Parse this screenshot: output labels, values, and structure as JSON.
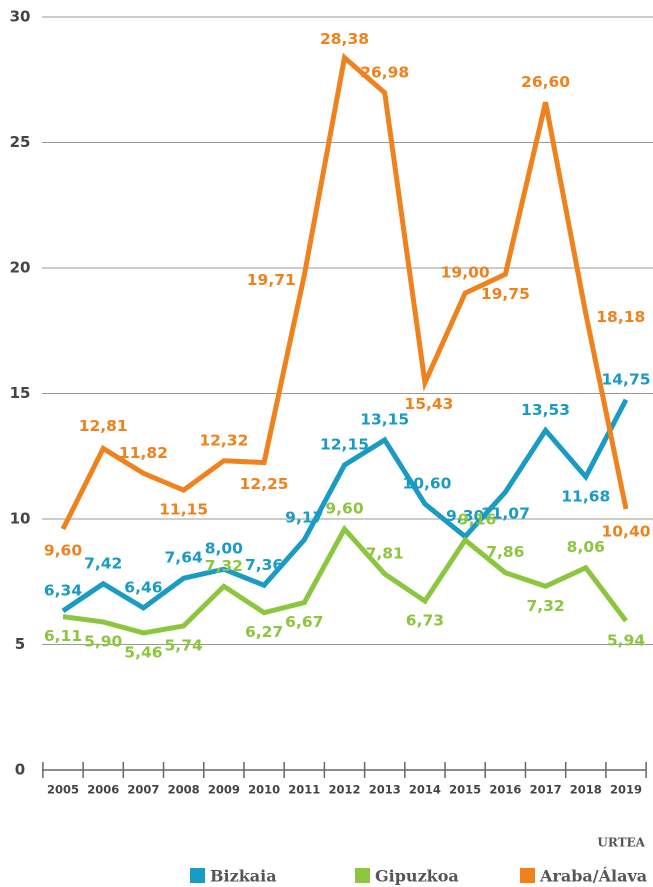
{
  "chart_data": {
    "type": "line",
    "x": [
      "2005",
      "2006",
      "2007",
      "2008",
      "2009",
      "2010",
      "2011",
      "2012",
      "2013",
      "2014",
      "2015",
      "2016",
      "2017",
      "2018",
      "2019"
    ],
    "x_label": "URTEA",
    "ylim": [
      0,
      30
    ],
    "yticks": [
      0,
      5,
      10,
      15,
      20,
      25,
      30
    ],
    "grid": true,
    "legend": "bottom",
    "series": [
      {
        "name": "Bizkaia",
        "color": "#1a9bc4",
        "values": [
          6.34,
          7.42,
          6.46,
          7.64,
          8.0,
          7.36,
          9.17,
          12.15,
          13.15,
          10.6,
          9.3,
          11.07,
          13.53,
          11.68,
          14.75
        ],
        "value_labels": [
          "6,34",
          "7,42",
          "6,46",
          "7,64",
          "8,00",
          "7,36",
          "9,17",
          "12,15",
          "13,15",
          "10,60",
          "9,30",
          "11,07",
          "13,53",
          "11,68",
          "14,75"
        ]
      },
      {
        "name": "Gipuzkoa",
        "color": "#8cc63f",
        "values": [
          6.11,
          5.9,
          5.46,
          5.74,
          7.32,
          6.27,
          6.67,
          9.6,
          7.81,
          6.73,
          9.16,
          7.86,
          7.32,
          8.06,
          5.94
        ],
        "value_labels": [
          "6,11",
          "5,90",
          "5,46",
          "5,74",
          "7,32",
          "6,27",
          "6,67",
          "9,60",
          "7,81",
          "6,73",
          "9,16",
          "7,86",
          "7,32",
          "8,06",
          "5,94"
        ]
      },
      {
        "name": "Araba/Álava",
        "color": "#f0821e",
        "values": [
          9.6,
          12.81,
          11.82,
          11.15,
          12.32,
          12.25,
          19.71,
          28.38,
          26.98,
          15.43,
          19.0,
          19.75,
          26.6,
          18.18,
          10.4
        ],
        "value_labels": [
          "9,60",
          "12,81",
          "11,82",
          "11,15",
          "12,32",
          "12,25",
          "19,71",
          "28,38",
          "26,98",
          "15,43",
          "19,00",
          "19,75",
          "26,60",
          "18,18",
          "10,40"
        ]
      }
    ]
  }
}
